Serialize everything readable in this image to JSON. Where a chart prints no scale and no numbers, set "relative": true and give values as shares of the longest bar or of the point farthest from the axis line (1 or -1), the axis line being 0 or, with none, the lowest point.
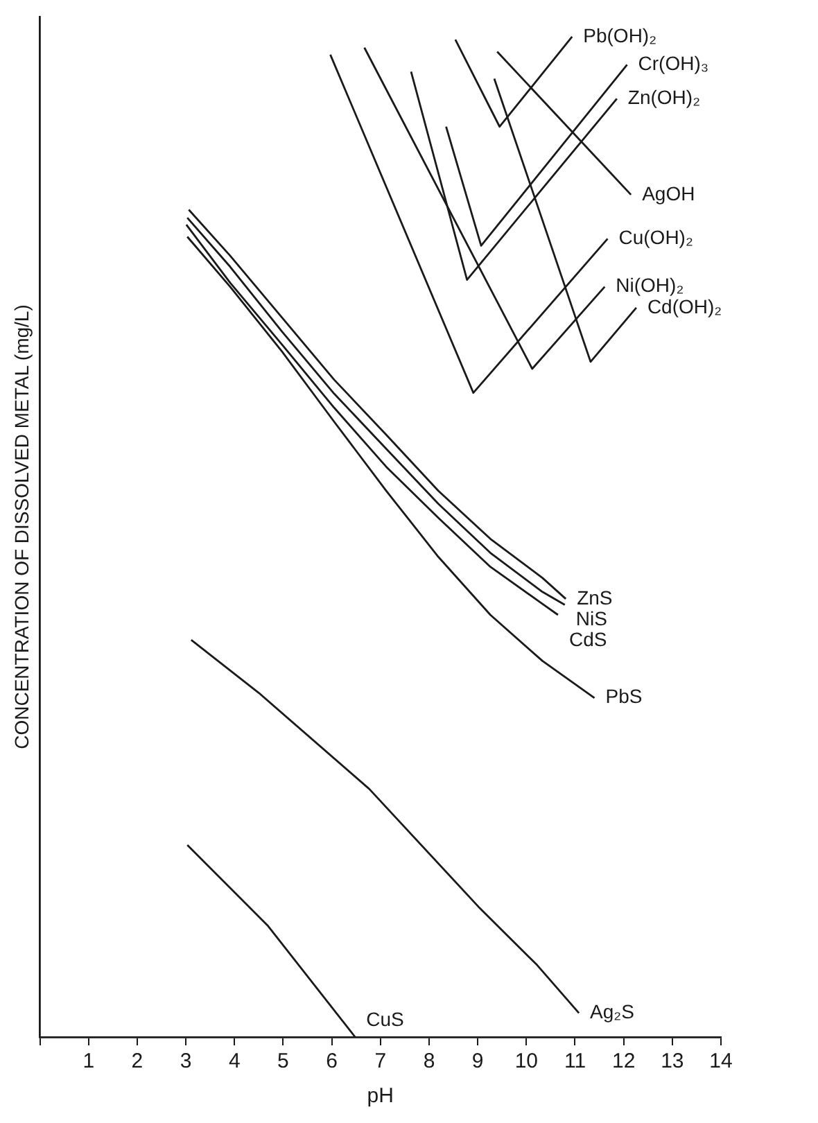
{
  "chart_data": {
    "type": "line",
    "xlabel": "pH",
    "ylabel": "CONCENTRATION OF DISSOLVED METAL (mg/L)",
    "relative": true,
    "xlim": [
      0,
      14
    ],
    "xticks": [
      {
        "value": 0,
        "label": null
      },
      1,
      2,
      3,
      4,
      5,
      6,
      7,
      8,
      9,
      10,
      11,
      12,
      13,
      14
    ],
    "legend": false,
    "marker": "none",
    "line_style": "solid",
    "grid": false,
    "series": [
      {
        "name": "Pb(OH)₂",
        "color": "#1a1a1a",
        "x": [
          8.54,
          9.45,
          10.94
        ],
        "values": [
          0.997,
          0.91,
          1.0
        ]
      },
      {
        "name": "Cr(OH)₃",
        "color": "#1a1a1a",
        "x": [
          8.35,
          9.07,
          12.07
        ],
        "values": [
          0.91,
          0.791,
          0.972
        ]
      },
      {
        "name": "Zn(OH)₂",
        "color": "#1a1a1a",
        "x": [
          7.63,
          8.78,
          11.86
        ],
        "values": [
          0.965,
          0.757,
          0.938
        ]
      },
      {
        "name": "AgOH",
        "color": "#1a1a1a",
        "x": [
          9.4,
          12.15
        ],
        "values": [
          0.985,
          0.842
        ]
      },
      {
        "name": "Cu(OH)₂",
        "color": "#1a1a1a",
        "x": [
          5.97,
          8.91,
          11.67
        ],
        "values": [
          0.982,
          0.644,
          0.798
        ]
      },
      {
        "name": "Ni(OH)₂",
        "color": "#1a1a1a",
        "x": [
          6.67,
          10.12,
          11.61
        ],
        "values": [
          0.989,
          0.668,
          0.75
        ]
      },
      {
        "name": "Cd(OH)₂",
        "color": "#1a1a1a",
        "x": [
          9.34,
          11.32,
          12.26
        ],
        "values": [
          0.958,
          0.675,
          0.729
        ]
      },
      {
        "name": "ZnS",
        "color": "#1a1a1a",
        "x": [
          3.06,
          3.91,
          4.98,
          6.05,
          7.12,
          8.19,
          9.26,
          10.33,
          10.81
        ],
        "values": [
          0.827,
          0.781,
          0.719,
          0.657,
          0.602,
          0.546,
          0.498,
          0.459,
          0.438
        ]
      },
      {
        "name": "NiS",
        "color": "#1a1a1a",
        "x": [
          3.03,
          3.91,
          4.98,
          6.05,
          7.12,
          8.19,
          9.26,
          10.33,
          10.79
        ],
        "values": [
          0.819,
          0.77,
          0.705,
          0.643,
          0.588,
          0.533,
          0.484,
          0.445,
          0.432
        ]
      },
      {
        "name": "CdS",
        "color": "#1a1a1a",
        "x": [
          3.01,
          3.91,
          4.98,
          6.05,
          7.12,
          8.19,
          9.26,
          10.33,
          10.65
        ],
        "values": [
          0.812,
          0.754,
          0.692,
          0.629,
          0.57,
          0.519,
          0.47,
          0.433,
          0.422
        ]
      },
      {
        "name": "PbS",
        "color": "#1a1a1a",
        "x": [
          3.03,
          3.91,
          4.98,
          6.05,
          7.12,
          8.19,
          9.26,
          10.33,
          11.4
        ],
        "values": [
          0.8,
          0.75,
          0.685,
          0.615,
          0.546,
          0.48,
          0.422,
          0.376,
          0.339
        ]
      },
      {
        "name": "Ag₂S",
        "color": "#1a1a1a",
        "x": [
          3.11,
          4.5,
          6.77,
          9.02,
          10.22,
          11.08
        ],
        "values": [
          0.397,
          0.344,
          0.248,
          0.13,
          0.072,
          0.024
        ]
      },
      {
        "name": "CuS",
        "color": "#1a1a1a",
        "x": [
          3.03,
          4.69,
          6.48
        ],
        "values": [
          0.192,
          0.111,
          0
        ]
      }
    ]
  }
}
